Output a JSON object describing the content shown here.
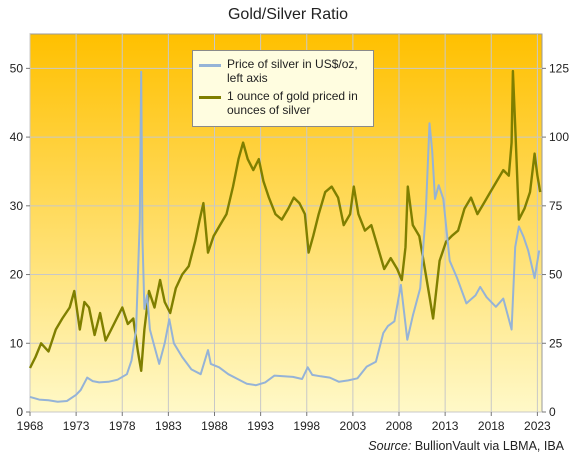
{
  "chart_data": {
    "type": "line",
    "title": "Gold/Silver  Ratio",
    "xlabel": "",
    "ylabel_left": "",
    "ylabel_right": "",
    "xlim": [
      1968,
      2023.5
    ],
    "ylim_left": [
      0,
      55
    ],
    "ylim_right": [
      0,
      137.5
    ],
    "x_ticks": [
      "1968",
      "1973",
      "1978",
      "1983",
      "1988",
      "1993",
      "1998",
      "2003",
      "2008",
      "2013",
      "2018",
      "2023"
    ],
    "y_ticks_left": [
      "0",
      "10",
      "20",
      "30",
      "40",
      "50"
    ],
    "y_ticks_right": [
      "0",
      "25",
      "50",
      "75",
      "100",
      "125"
    ],
    "grid": true,
    "legend_position": "top-center",
    "background_gradient": [
      "#ffc000",
      "#fff9c8"
    ],
    "series": [
      {
        "name": "Price of silver in US$/oz, left axis",
        "axis": "left",
        "color": "#95b3d7",
        "x": [
          1968.0,
          1969.0,
          1970.0,
          1971.0,
          1972.0,
          1973.0,
          1973.5,
          1974.2,
          1974.8,
          1975.5,
          1976.5,
          1977.5,
          1978.5,
          1979.0,
          1979.5,
          1979.9,
          1980.05,
          1980.2,
          1980.4,
          1980.7,
          1981.0,
          1981.5,
          1982.0,
          1982.6,
          1983.1,
          1983.6,
          1984.5,
          1985.5,
          1986.5,
          1987.3,
          1987.6,
          1988.5,
          1989.5,
          1990.5,
          1991.5,
          1992.5,
          1993.5,
          1994.5,
          1995.5,
          1996.5,
          1997.5,
          1998.1,
          1998.6,
          1999.5,
          2000.5,
          2001.5,
          2002.5,
          2003.5,
          2004.5,
          2005.5,
          2006.3,
          2006.8,
          2007.5,
          2008.2,
          2008.9,
          2009.5,
          2010.3,
          2010.9,
          2011.3,
          2011.6,
          2011.9,
          2012.3,
          2012.8,
          2013.5,
          2014.3,
          2015.3,
          2016.3,
          2016.8,
          2017.5,
          2018.5,
          2019.3,
          2020.2,
          2020.6,
          2021.0,
          2021.5,
          2022.0,
          2022.7,
          2023.2
        ],
        "values": [
          2.2,
          1.8,
          1.7,
          1.5,
          1.6,
          2.5,
          3.2,
          5.0,
          4.5,
          4.3,
          4.4,
          4.7,
          5.5,
          7.5,
          12.0,
          28.0,
          49.5,
          25.0,
          15.0,
          17.0,
          12.0,
          9.5,
          7.0,
          10.0,
          13.5,
          10.0,
          8.0,
          6.2,
          5.5,
          9.0,
          7.0,
          6.5,
          5.5,
          4.8,
          4.1,
          3.9,
          4.3,
          5.3,
          5.2,
          5.1,
          4.8,
          6.5,
          5.4,
          5.2,
          5.0,
          4.4,
          4.6,
          4.9,
          6.6,
          7.3,
          11.5,
          12.5,
          13.2,
          18.5,
          10.5,
          14.0,
          18.0,
          29.0,
          42.0,
          38.0,
          31.0,
          33.0,
          31.0,
          22.0,
          19.5,
          15.8,
          17.0,
          18.2,
          16.7,
          15.3,
          16.5,
          12.0,
          24.0,
          27.0,
          25.5,
          23.5,
          19.5,
          23.5
        ]
      },
      {
        "name": "1 ounce of gold priced in ounces of silver",
        "axis": "right",
        "color": "#7f7f00",
        "x": [
          1968.0,
          1968.6,
          1969.2,
          1970.0,
          1970.8,
          1971.5,
          1972.3,
          1972.8,
          1973.4,
          1973.9,
          1974.4,
          1975.0,
          1975.6,
          1976.2,
          1976.8,
          1977.4,
          1978.0,
          1978.6,
          1979.2,
          1979.7,
          1980.05,
          1980.4,
          1980.9,
          1981.5,
          1982.1,
          1982.6,
          1983.2,
          1983.8,
          1984.5,
          1985.2,
          1985.9,
          1986.4,
          1986.8,
          1987.3,
          1987.9,
          1988.6,
          1989.3,
          1990.0,
          1990.6,
          1991.1,
          1991.6,
          1992.2,
          1992.8,
          1993.3,
          1993.9,
          1994.6,
          1995.3,
          1996.0,
          1996.6,
          1997.2,
          1997.8,
          1998.2,
          1998.7,
          1999.3,
          2000.0,
          2000.7,
          2001.4,
          2002.0,
          2002.7,
          2003.1,
          2003.6,
          2004.3,
          2005.0,
          2005.7,
          2006.4,
          2007.1,
          2007.8,
          2008.3,
          2008.7,
          2008.95,
          2009.5,
          2010.2,
          2010.9,
          2011.3,
          2011.7,
          2012.4,
          2013.1,
          2013.7,
          2014.4,
          2015.1,
          2015.8,
          2016.5,
          2017.2,
          2017.9,
          2018.6,
          2019.3,
          2019.9,
          2020.2,
          2020.35,
          2020.6,
          2021.0,
          2021.6,
          2022.2,
          2022.7,
          2023.0,
          2023.3
        ],
        "values": [
          16.0,
          20.0,
          25.0,
          22.0,
          30.0,
          34.0,
          38.0,
          44.0,
          30.0,
          40.0,
          38.0,
          28.0,
          36.0,
          26.0,
          30.0,
          34.0,
          38.0,
          32.0,
          34.0,
          22.0,
          15.0,
          30.0,
          44.0,
          38.0,
          48.0,
          40.0,
          36.0,
          45.0,
          50.0,
          53.0,
          62.0,
          70.0,
          76.0,
          58.0,
          64.0,
          68.0,
          72.0,
          82.0,
          92.0,
          98.0,
          92.0,
          88.0,
          92.0,
          84.0,
          78.0,
          72.0,
          70.0,
          74.0,
          78.0,
          76.0,
          72.0,
          58.0,
          64.0,
          72.0,
          80.0,
          82.0,
          78.0,
          68.0,
          72.0,
          82.0,
          72.0,
          66.0,
          68.0,
          60.0,
          52.0,
          56.0,
          52.0,
          48.0,
          60.0,
          82.0,
          68.0,
          64.0,
          50.0,
          42.0,
          34.0,
          55.0,
          62.0,
          64.0,
          66.0,
          74.0,
          78.0,
          72.0,
          76.0,
          80.0,
          84.0,
          88.0,
          86.0,
          98.0,
          124.0,
          104.0,
          70.0,
          74.0,
          80.0,
          94.0,
          86.0,
          80.0
        ]
      }
    ]
  },
  "legend": {
    "items": [
      {
        "label_line1": "Price of silver in US$/oz,",
        "label_line2": "left axis"
      },
      {
        "label_line1": "1 ounce of gold priced in",
        "label_line2": "ounces of silver"
      }
    ]
  },
  "source": {
    "label": "Source:",
    "text": " BullionVault via LBMA, IBA"
  }
}
